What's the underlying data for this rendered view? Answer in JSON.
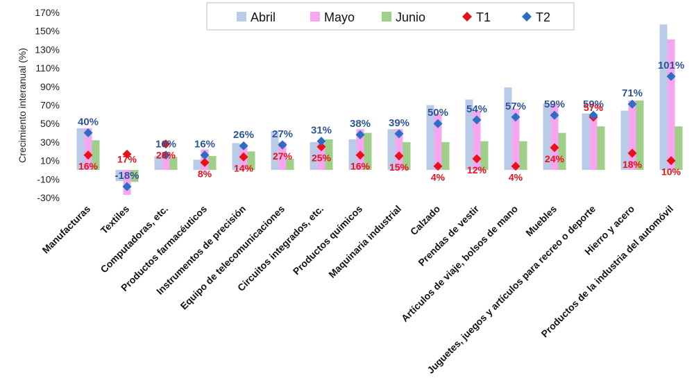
{
  "chart_data": {
    "type": "bar",
    "ylabel": "Crecimiento interanual (%)",
    "ylim": [
      -30,
      170
    ],
    "yticks": [
      -30,
      -10,
      10,
      30,
      50,
      70,
      90,
      110,
      130,
      150,
      170
    ],
    "ytick_labels": [
      "-30%",
      "-10%",
      "10%",
      "30%",
      "50%",
      "70%",
      "90%",
      "110%",
      "130%",
      "150%",
      "170%"
    ],
    "grid": false,
    "legend_position": "top-center",
    "categories": [
      "Manufacturas",
      "Textiles",
      "Computadoras, etc.",
      "Productos farmacéuticos",
      "Instrumentos de precisión",
      "Equipo de telecomunicaciones",
      "Circuitos integrados, etc.",
      "Productos químicos",
      "Maquinaria industrial",
      "Calzado",
      "Prendas de vestir",
      "Artículos de viaje, bolsos de mano",
      "Muebles",
      "Juguetes, juegos y artículos para recreo o deporte",
      "Hierro y acero",
      "Productos de la industria del automóvil"
    ],
    "series": [
      {
        "name": "Abril",
        "kind": "bar",
        "color": "#B8CCE8",
        "values": [
          45,
          -12,
          15,
          11,
          29,
          42,
          30,
          33,
          44,
          70,
          76,
          89,
          72,
          61,
          64,
          157
        ]
      },
      {
        "name": "Mayo",
        "kind": "bar",
        "color": "#F4A6EE",
        "values": [
          45,
          -27,
          14,
          22,
          28,
          30,
          29,
          44,
          44,
          61,
          64,
          66,
          71,
          60,
          75,
          141
        ]
      },
      {
        "name": "Junio",
        "kind": "bar",
        "color": "#9FD08A",
        "values": [
          32,
          -13,
          14,
          15,
          20,
          12,
          33,
          40,
          30,
          30,
          31,
          31,
          40,
          47,
          75,
          47
        ]
      },
      {
        "name": "T1",
        "kind": "marker",
        "marker": "diamond",
        "color": "#E8101A",
        "values": [
          16,
          17,
          28,
          8,
          14,
          27,
          25,
          16,
          15,
          4,
          12,
          4,
          24,
          57,
          18,
          10
        ],
        "labels": [
          "16%",
          "17%",
          "28%",
          "8%",
          "14%",
          "27%",
          "25%",
          "16%",
          "15%",
          "4%",
          "12%",
          "4%",
          "24%",
          "57%",
          "18%",
          "10%"
        ]
      },
      {
        "name": "T2",
        "kind": "marker",
        "marker": "diamond",
        "color": "#2E6DC4",
        "values": [
          40,
          -18,
          16,
          16,
          26,
          27,
          31,
          38,
          39,
          50,
          54,
          57,
          59,
          59,
          71,
          101
        ],
        "labels": [
          "40%",
          "-18%",
          "16%",
          "16%",
          "26%",
          "27%",
          "31%",
          "38%",
          "39%",
          "50%",
          "54%",
          "57%",
          "59%",
          "59%",
          "71%",
          "101%"
        ]
      }
    ]
  }
}
